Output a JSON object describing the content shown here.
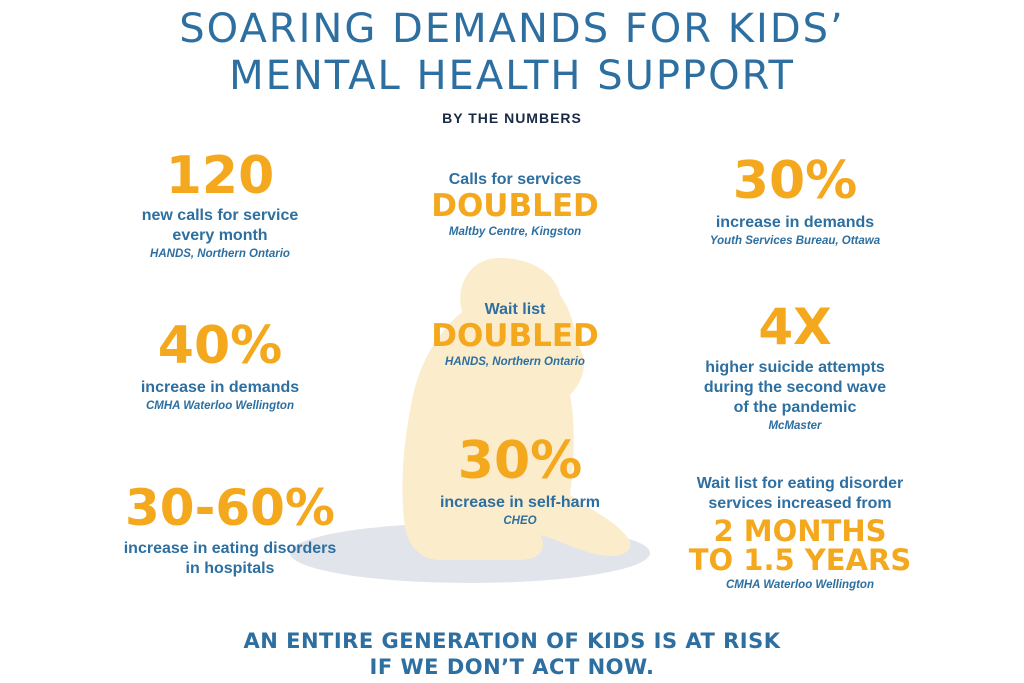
{
  "title": {
    "line1": "SOARING DEMANDS FOR KIDS’",
    "line2": "MENTAL HEALTH SUPPORT"
  },
  "subtitle": "BY THE NUMBERS",
  "colors": {
    "blue": "#2d6fa0",
    "orange": "#f4a81d",
    "silhouette": "#fbeccb",
    "shadow": "#e1e4ea"
  },
  "illustration": {
    "name": "sitting-child-silhouette"
  },
  "stats": {
    "s1": {
      "number": "120",
      "label1": "new calls for service",
      "label2": "every month",
      "source": "HANDS, Northern Ontario"
    },
    "s2": {
      "label": "Calls for services",
      "number": "DOUBLED",
      "source": "Maltby Centre, Kingston"
    },
    "s3": {
      "number": "30%",
      "label": "increase in demands",
      "source": "Youth Services Bureau, Ottawa"
    },
    "s4": {
      "number": "40%",
      "label": "increase in demands",
      "source": "CMHA Waterloo Wellington"
    },
    "s5": {
      "label": "Wait list",
      "number": "DOUBLED",
      "source": "HANDS, Northern Ontario"
    },
    "s6": {
      "number": "4X",
      "label1": "higher suicide attempts",
      "label2": "during the second wave",
      "label3": "of the pandemic",
      "source": "McMaster"
    },
    "s7": {
      "number": "30-60%",
      "label1": "increase in eating disorders",
      "label2": "in hospitals"
    },
    "s8": {
      "number": "30%",
      "label": "increase in self-harm",
      "source": "CHEO"
    },
    "s9": {
      "label1": "Wait list for eating disorder",
      "label2": "services increased from",
      "number1": "2 MONTHS",
      "number2": "TO 1.5 YEARS",
      "source": "CMHA Waterloo Wellington"
    }
  },
  "footer": {
    "line1": "AN ENTIRE GENERATION OF KIDS IS AT RISK",
    "line2": "IF WE DON’T ACT NOW."
  }
}
